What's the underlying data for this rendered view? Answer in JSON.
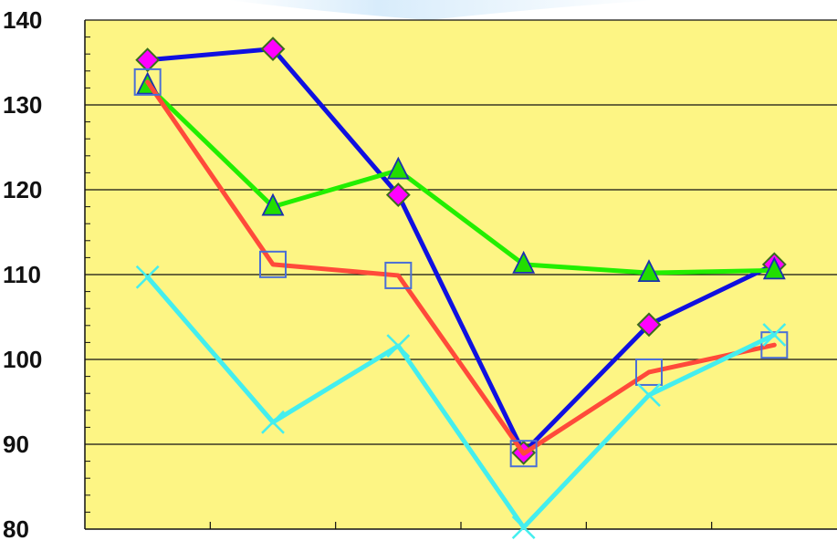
{
  "chart_data": {
    "type": "line",
    "title": "",
    "xlabel": "",
    "ylabel": "",
    "ylim": [
      80,
      140
    ],
    "yticks": [
      "80",
      "90",
      "100",
      "110",
      "120",
      "130",
      "140"
    ],
    "grid": "horizontal major lines",
    "legend": "none",
    "x": [
      1,
      2,
      3,
      4,
      5,
      6
    ],
    "series": [
      {
        "values": [
          135.3,
          136.6,
          119.4,
          89.0,
          104.1,
          111.2
        ],
        "color": "#1010e0",
        "marker": "diamond",
        "marker_color": "#ff00ff"
      },
      {
        "values": [
          132.3,
          118.0,
          122.3,
          111.2,
          110.2,
          110.5
        ],
        "color": "#22ee00",
        "marker": "triangle",
        "marker_color": "#22dd00"
      },
      {
        "values": [
          132.7,
          111.2,
          109.9,
          88.9,
          98.5,
          101.7
        ],
        "color": "#ff4a3a",
        "marker": "square",
        "marker_color": "#4a6fd6"
      },
      {
        "values": [
          109.7,
          92.6,
          101.6,
          80.2,
          95.8,
          102.9
        ],
        "color": "#44eeee",
        "marker": "x",
        "marker_color": "#44eeee"
      }
    ]
  },
  "colors": {
    "plot_background": "#fdf584",
    "axis": "#111111",
    "gridline": "#111111"
  }
}
